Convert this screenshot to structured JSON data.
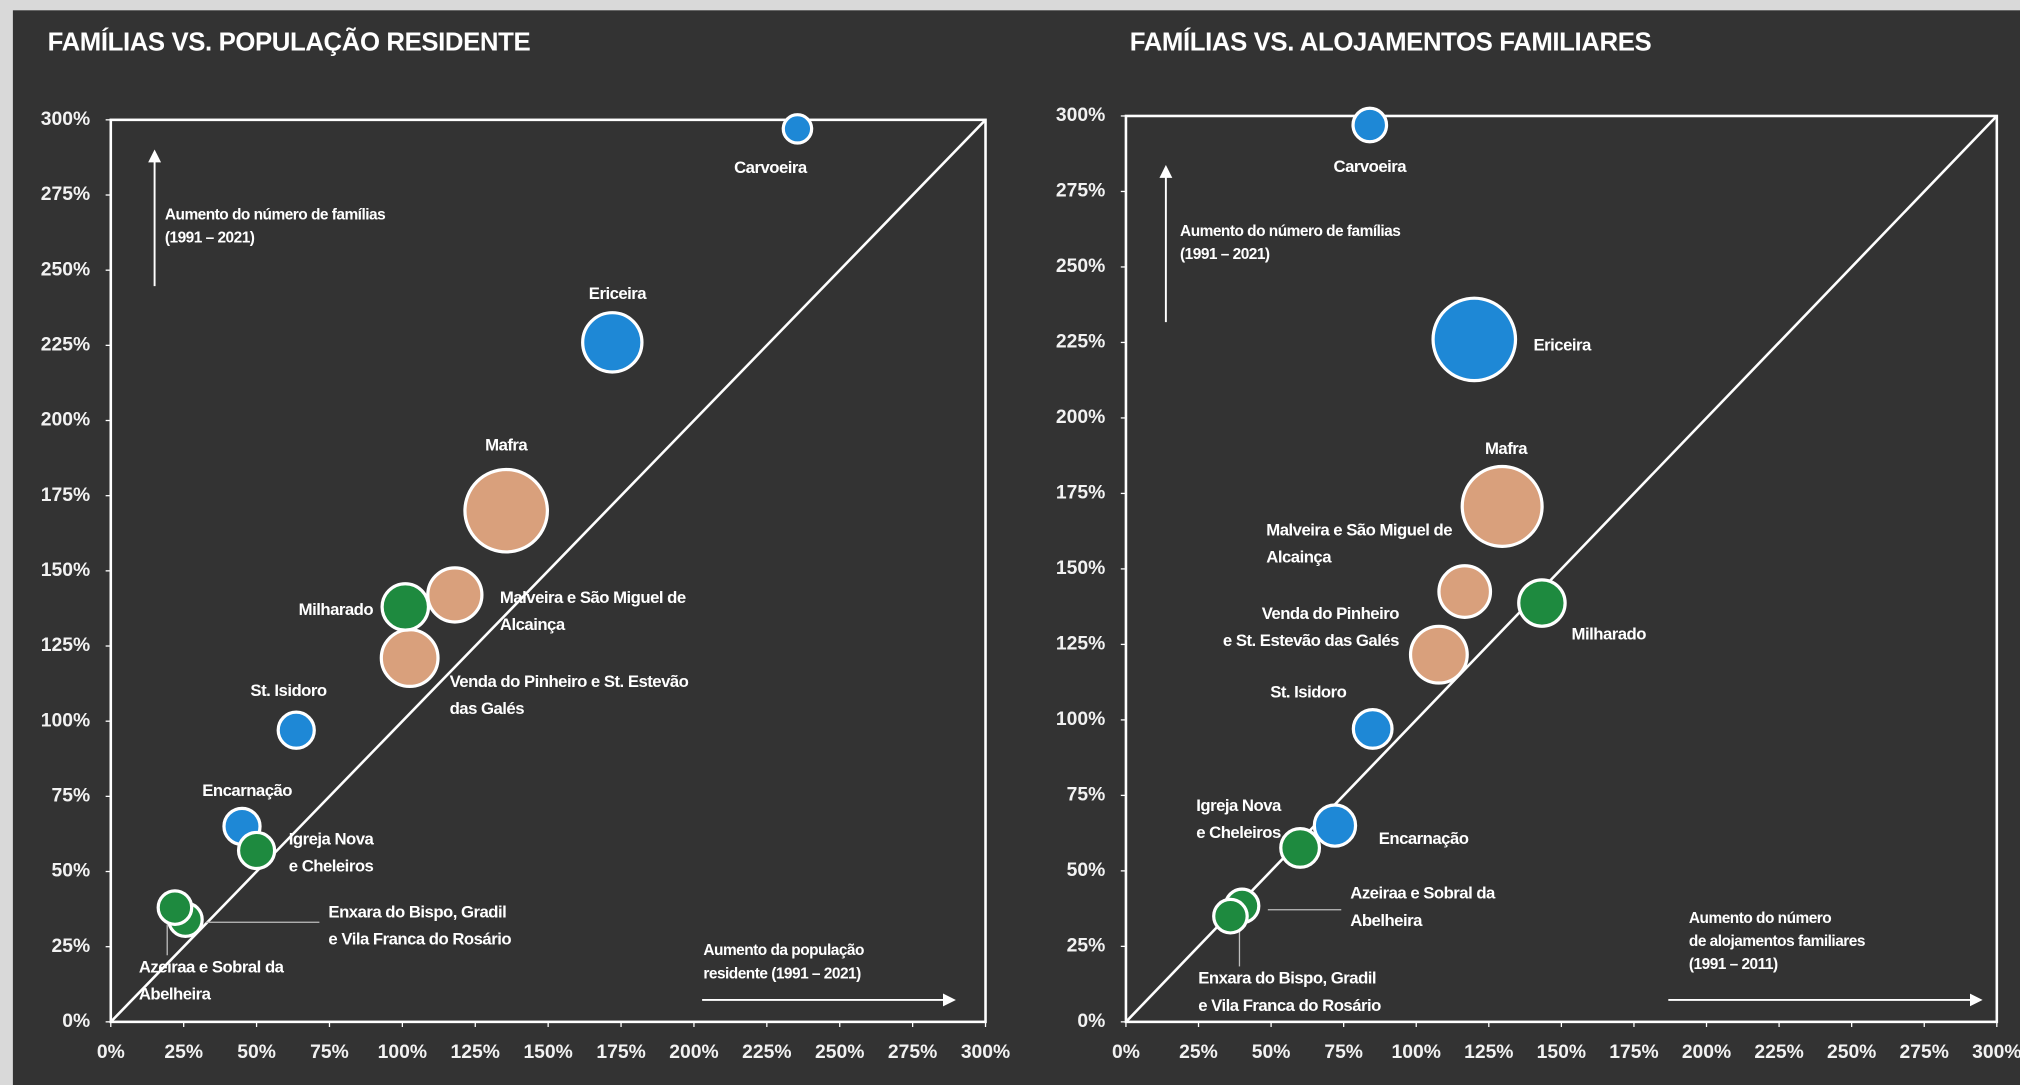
{
  "chart_data": [
    {
      "type": "bubble",
      "title": "FAMÍLIAS VS. POPULAÇÃO RESIDENTE",
      "xlim": [
        0,
        300
      ],
      "ylim": [
        0,
        300
      ],
      "xticks": [
        {
          "value": 0,
          "label": "0%"
        },
        {
          "value": 25,
          "label": "25%"
        },
        {
          "value": 50,
          "label": "50%"
        },
        {
          "value": 75,
          "label": "75%"
        },
        {
          "value": 100,
          "label": "100%"
        },
        {
          "value": 125,
          "label": "125%"
        },
        {
          "value": 150,
          "label": "150%"
        },
        {
          "value": 175,
          "label": "175%"
        },
        {
          "value": 200,
          "label": "200%"
        },
        {
          "value": 225,
          "label": "225%"
        },
        {
          "value": 250,
          "label": "250%"
        },
        {
          "value": 275,
          "label": "275%"
        },
        {
          "value": 300,
          "label": "300%"
        }
      ],
      "yticks": [
        {
          "value": 0,
          "label": "0%"
        },
        {
          "value": 25,
          "label": "25%"
        },
        {
          "value": 50,
          "label": "50%"
        },
        {
          "value": 75,
          "label": "75%"
        },
        {
          "value": 100,
          "label": "100%"
        },
        {
          "value": 125,
          "label": "125%"
        },
        {
          "value": 150,
          "label": "150%"
        },
        {
          "value": 175,
          "label": "175%"
        },
        {
          "value": 200,
          "label": "200%"
        },
        {
          "value": 225,
          "label": "225%"
        },
        {
          "value": 250,
          "label": "250%"
        },
        {
          "value": 275,
          "label": "275%"
        },
        {
          "value": 300,
          "label": "300%"
        }
      ],
      "y_annotation": [
        "Aumento do número de famílias",
        "(1991 – 2021)"
      ],
      "x_annotation": [
        "Aumento da população",
        "residente (1991 – 2021)"
      ],
      "points": [
        {
          "label": [
            "Carvoeira"
          ],
          "x": 235.5,
          "y": 297,
          "size": 11,
          "color": "#1e88d6"
        },
        {
          "label": [
            "Ericeira"
          ],
          "x": 172,
          "y": 226,
          "size": 23,
          "color": "#1e88d6"
        },
        {
          "label": [
            "Mafra"
          ],
          "x": 135.6,
          "y": 170,
          "size": 32,
          "color": "#d9a07c"
        },
        {
          "label": [
            "Malveira e São Miguel de",
            "Alcainça"
          ],
          "x": 118,
          "y": 142,
          "size": 21,
          "color": "#d9a07c"
        },
        {
          "label": [
            "Venda do Pinheiro e St. Estevão",
            "das Galés"
          ],
          "x": 102.5,
          "y": 121,
          "size": 22,
          "color": "#d9a07c"
        },
        {
          "label": [
            "Milharado"
          ],
          "x": 101,
          "y": 138,
          "size": 18,
          "color": "#1e8a3f"
        },
        {
          "label": [
            "St. Isidoro"
          ],
          "x": 63.6,
          "y": 97,
          "size": 14,
          "color": "#1e88d6"
        },
        {
          "label": [
            "Encarnação"
          ],
          "x": 45,
          "y": 65,
          "size": 14,
          "color": "#1e88d6"
        },
        {
          "label": [
            "Igreja Nova",
            "e Cheleiros"
          ],
          "x": 50,
          "y": 57,
          "size": 14,
          "color": "#1e8a3f"
        },
        {
          "label": [
            "Enxara do Bispo, Gradil",
            "e Vila Franca do Rosário"
          ],
          "x": 25.6,
          "y": 34,
          "size": 13,
          "color": "#1e8a3f"
        },
        {
          "label": [
            "Azeiraa e Sobral da",
            "Abelheira"
          ],
          "x": 22,
          "y": 38,
          "size": 13,
          "color": "#1e8a3f"
        }
      ]
    },
    {
      "type": "bubble",
      "title": "FAMÍLIAS VS. ALOJAMENTOS FAMILIARES",
      "xlim": [
        0,
        300
      ],
      "ylim": [
        0,
        300
      ],
      "xticks": [
        {
          "value": 0,
          "label": "0%"
        },
        {
          "value": 25,
          "label": "25%"
        },
        {
          "value": 50,
          "label": "50%"
        },
        {
          "value": 75,
          "label": "75%"
        },
        {
          "value": 100,
          "label": "100%"
        },
        {
          "value": 125,
          "label": "125%"
        },
        {
          "value": 150,
          "label": "150%"
        },
        {
          "value": 175,
          "label": "175%"
        },
        {
          "value": 200,
          "label": "200%"
        },
        {
          "value": 225,
          "label": "225%"
        },
        {
          "value": 250,
          "label": "250%"
        },
        {
          "value": 275,
          "label": "275%"
        },
        {
          "value": 300,
          "label": "300%"
        }
      ],
      "yticks": [
        {
          "value": 0,
          "label": "0%"
        },
        {
          "value": 25,
          "label": "25%"
        },
        {
          "value": 50,
          "label": "50%"
        },
        {
          "value": 75,
          "label": "75%"
        },
        {
          "value": 100,
          "label": "100%"
        },
        {
          "value": 125,
          "label": "125%"
        },
        {
          "value": 150,
          "label": "150%"
        },
        {
          "value": 175,
          "label": "175%"
        },
        {
          "value": 200,
          "label": "200%"
        },
        {
          "value": 225,
          "label": "225%"
        },
        {
          "value": 250,
          "label": "250%"
        },
        {
          "value": 275,
          "label": "275%"
        },
        {
          "value": 300,
          "label": "300%"
        }
      ],
      "y_annotation": [
        "Aumento do número de famílias",
        "(1991 – 2021)"
      ],
      "x_annotation": [
        "Aumento do número",
        "de alojamentos familiares",
        "(1991 – 2011)"
      ],
      "points": [
        {
          "label": [
            "Carvoeira"
          ],
          "x": 84,
          "y": 297,
          "size": 13,
          "color": "#1e88d6"
        },
        {
          "label": [
            "Ericeira"
          ],
          "x": 120,
          "y": 226,
          "size": 32,
          "color": "#1e88d6"
        },
        {
          "label": [
            "Mafra"
          ],
          "x": 129.6,
          "y": 170.7,
          "size": 31,
          "color": "#d9a07c"
        },
        {
          "label": [
            "Malveira e São Miguel de",
            "Alcainça"
          ],
          "x": 116.7,
          "y": 142.5,
          "size": 20,
          "color": "#d9a07c"
        },
        {
          "label": [
            "Venda do Pinheiro",
            "e St. Estevão das Galés"
          ],
          "x": 107.8,
          "y": 121.6,
          "size": 22,
          "color": "#d9a07c"
        },
        {
          "label": [
            "Milharado"
          ],
          "x": 143.3,
          "y": 138.7,
          "size": 18,
          "color": "#1e8a3f"
        },
        {
          "label": [
            "St. Isidoro"
          ],
          "x": 85,
          "y": 97,
          "size": 15,
          "color": "#1e88d6"
        },
        {
          "label": [
            "Encarnação"
          ],
          "x": 72,
          "y": 65,
          "size": 16,
          "color": "#1e88d6"
        },
        {
          "label": [
            "Igreja Nova",
            "e Cheleiros"
          ],
          "x": 60,
          "y": 57.6,
          "size": 15,
          "color": "#1e8a3f"
        },
        {
          "label": [
            "Azeiraa e Sobral da",
            "Abelheira"
          ],
          "x": 40,
          "y": 38.4,
          "size": 13,
          "color": "#1e8a3f"
        },
        {
          "label": [
            "Enxara do Bispo, Gradil",
            "e Vila Franca do Rosário"
          ],
          "x": 36,
          "y": 35,
          "size": 13,
          "color": "#1e8a3f"
        }
      ]
    }
  ]
}
